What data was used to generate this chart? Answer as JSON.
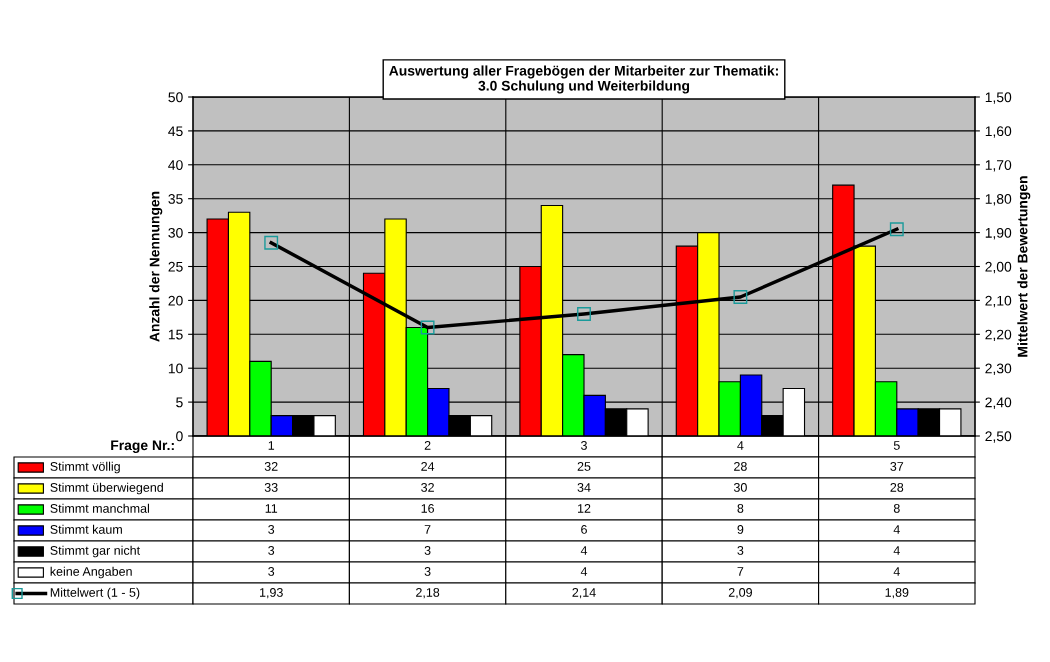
{
  "chart_data": {
    "type": "bar",
    "title": "Auswertung aller Fragebögen der Mitarbeiter zur Thematik:\n3.0 Schulung und Weiterbildung",
    "xlabel": "Frage Nr.:",
    "ylabel": "Anzahl der Nennungen",
    "y2label": "Mittelwert der Bewertungen",
    "categories": [
      "1",
      "2",
      "3",
      "4",
      "5"
    ],
    "series": [
      {
        "name": "Stimmt völlig",
        "color": "#ff0000",
        "values": [
          32,
          24,
          25,
          28,
          37
        ]
      },
      {
        "name": "Stimmt überwiegend",
        "color": "#ffff00",
        "values": [
          33,
          32,
          34,
          30,
          28
        ]
      },
      {
        "name": "Stimmt manchmal",
        "color": "#00ff00",
        "values": [
          11,
          16,
          12,
          8,
          8
        ]
      },
      {
        "name": "Stimmt kaum",
        "color": "#0000ff",
        "values": [
          3,
          7,
          6,
          9,
          4
        ]
      },
      {
        "name": "Stimmt gar nicht",
        "color": "#000000",
        "values": [
          3,
          3,
          4,
          3,
          4
        ]
      },
      {
        "name": "keine Angaben",
        "color": "#ffffff",
        "values": [
          3,
          3,
          4,
          7,
          4
        ]
      },
      {
        "name": "Mittelwert (1 - 5)",
        "type": "line",
        "axis": "y2",
        "color": "#000000",
        "marker": "square",
        "values": [
          1.93,
          2.18,
          2.14,
          2.09,
          1.89
        ],
        "value_labels": [
          "1,93",
          "2,18",
          "2,14",
          "2,09",
          "1,89"
        ]
      }
    ],
    "ylim": [
      0,
      50
    ],
    "yticks": [
      0,
      5,
      10,
      15,
      20,
      25,
      30,
      35,
      40,
      45,
      50
    ],
    "y2lim": [
      2.5,
      1.5
    ],
    "y2ticks": [
      {
        "value": 1.5,
        "label": "1,50"
      },
      {
        "value": 1.6,
        "label": "1,60"
      },
      {
        "value": 1.7,
        "label": "1,70"
      },
      {
        "value": 1.8,
        "label": "1,80"
      },
      {
        "value": 1.9,
        "label": "1,90"
      },
      {
        "value": 2.0,
        "label": "2,00"
      },
      {
        "value": 2.1,
        "label": "2,10"
      },
      {
        "value": 2.2,
        "label": "2,20"
      },
      {
        "value": 2.3,
        "label": "2,30"
      },
      {
        "value": 2.4,
        "label": "2,40"
      },
      {
        "value": 2.5,
        "label": "2,50"
      }
    ],
    "grid": "y",
    "data_labels": true,
    "legend": "bottom"
  }
}
